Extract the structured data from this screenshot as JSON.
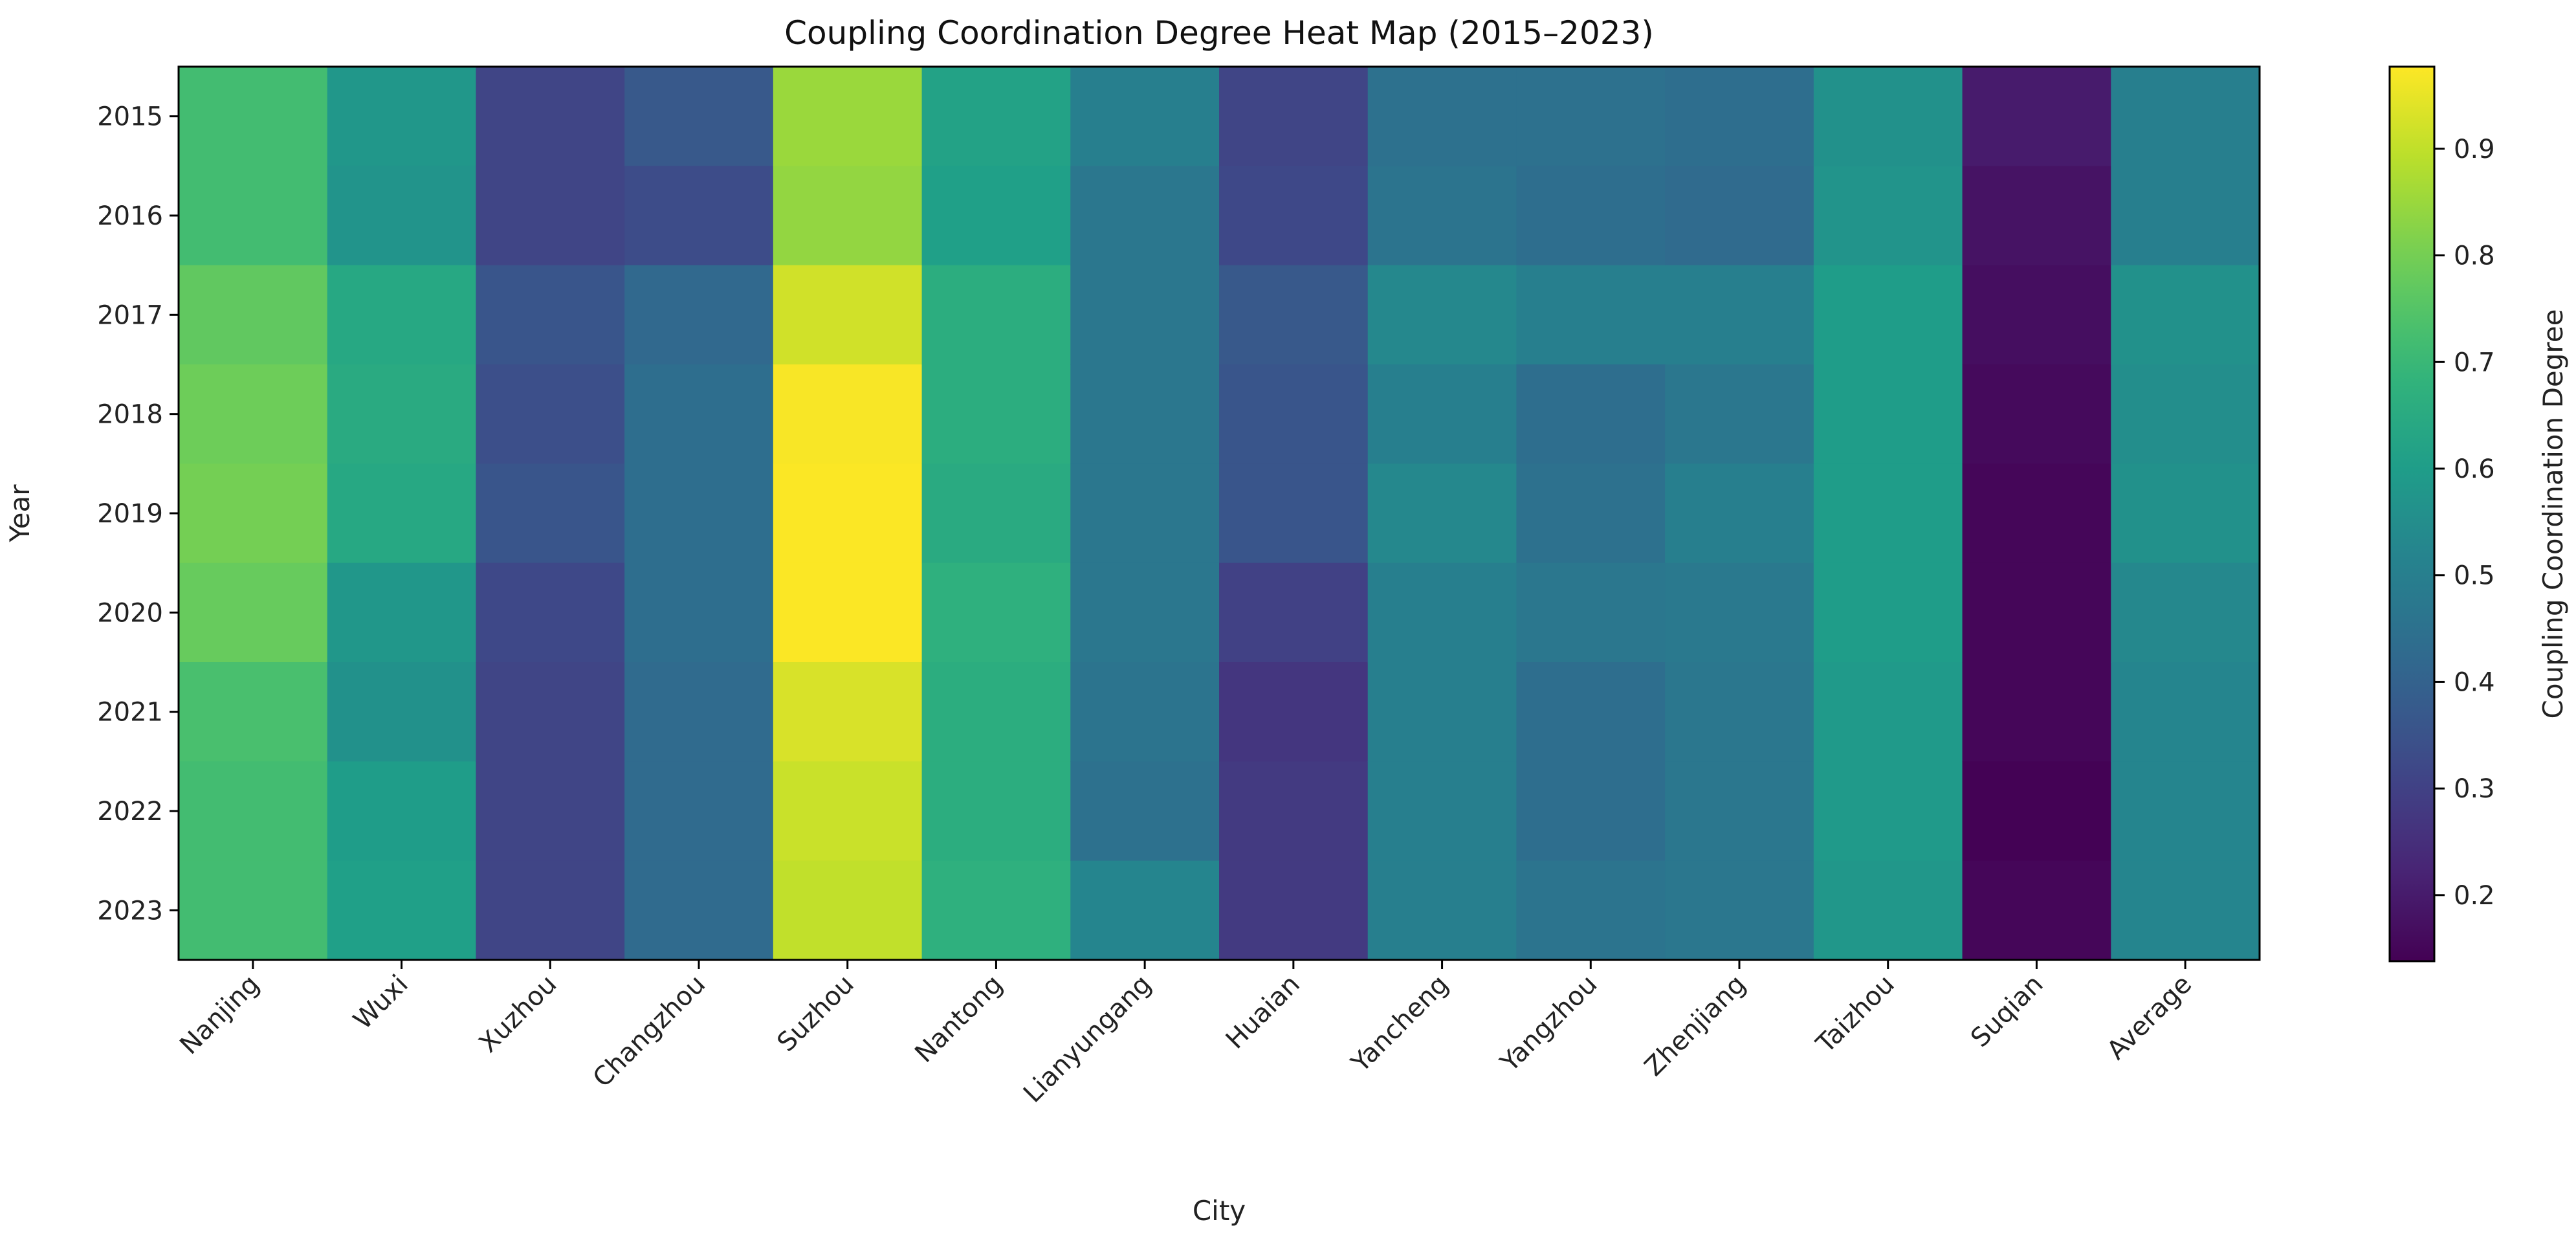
{
  "chart_data": {
    "type": "heatmap",
    "title": "Coupling Coordination Degree Heat Map (2015–2023)",
    "xlabel": "City",
    "ylabel": "Year",
    "colorbar_label": "Coupling Coordination Degree",
    "colormap": "viridis",
    "color_range": [
      0.138,
      0.977
    ],
    "colorbar_ticks": [
      "0.2",
      "0.3",
      "0.4",
      "0.5",
      "0.6",
      "0.7",
      "0.8",
      "0.9"
    ],
    "x_categories": [
      "Nanjing",
      "Wuxi",
      "Xuzhou",
      "Changzhou",
      "Suzhou",
      "Nantong",
      "Lianyungang",
      "Huaian",
      "Yancheng",
      "Yangzhou",
      "Zhenjiang",
      "Taizhou",
      "Suqian",
      "Average"
    ],
    "y_categories": [
      "2015",
      "2016",
      "2017",
      "2018",
      "2019",
      "2020",
      "2021",
      "2022",
      "2023"
    ],
    "values_by_city": {
      "Nanjing": [
        0.72,
        0.72,
        0.77,
        0.79,
        0.8,
        0.78,
        0.73,
        0.72,
        0.72
      ],
      "Wuxi": [
        0.58,
        0.57,
        0.64,
        0.65,
        0.64,
        0.58,
        0.56,
        0.6,
        0.61
      ],
      "Xuzhou": [
        0.31,
        0.31,
        0.36,
        0.34,
        0.36,
        0.32,
        0.31,
        0.31,
        0.31
      ],
      "Changzhou": [
        0.37,
        0.33,
        0.42,
        0.44,
        0.44,
        0.44,
        0.43,
        0.43,
        0.43
      ],
      "Suzhou": [
        0.85,
        0.84,
        0.92,
        0.97,
        0.975,
        0.975,
        0.93,
        0.91,
        0.9
      ],
      "Nantong": [
        0.62,
        0.61,
        0.66,
        0.66,
        0.65,
        0.67,
        0.66,
        0.66,
        0.67
      ],
      "Lianyungang": [
        0.5,
        0.47,
        0.47,
        0.47,
        0.47,
        0.47,
        0.46,
        0.45,
        0.52
      ],
      "Huaian": [
        0.31,
        0.32,
        0.37,
        0.36,
        0.36,
        0.3,
        0.27,
        0.28,
        0.28
      ],
      "Yancheng": [
        0.45,
        0.46,
        0.53,
        0.5,
        0.53,
        0.5,
        0.5,
        0.5,
        0.5
      ],
      "Yangzhou": [
        0.45,
        0.44,
        0.5,
        0.44,
        0.45,
        0.47,
        0.44,
        0.44,
        0.46
      ],
      "Zhenjiang": [
        0.44,
        0.43,
        0.5,
        0.47,
        0.5,
        0.48,
        0.47,
        0.47,
        0.47
      ],
      "Taizhou": [
        0.56,
        0.57,
        0.6,
        0.6,
        0.6,
        0.6,
        0.59,
        0.59,
        0.58
      ],
      "Suqian": [
        0.2,
        0.18,
        0.17,
        0.16,
        0.15,
        0.15,
        0.15,
        0.14,
        0.15
      ],
      "Average": [
        0.5,
        0.5,
        0.56,
        0.55,
        0.56,
        0.53,
        0.52,
        0.52,
        0.52
      ]
    }
  }
}
